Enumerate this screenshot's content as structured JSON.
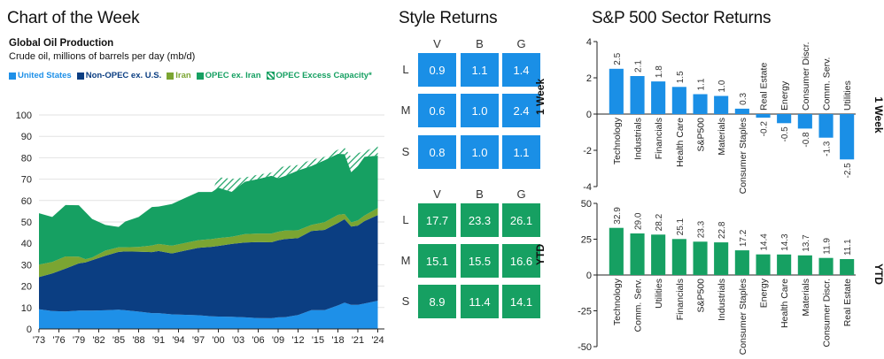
{
  "colors": {
    "us": "#1e90e8",
    "nonopec": "#0b3e82",
    "iran": "#7ba532",
    "opec": "#16a062",
    "excess_stroke": "#16a062",
    "style_1w": "#1a8fe6",
    "style_ytd": "#16a062",
    "sector_1w": "#1a8fe6",
    "sector_ytd": "#16a062"
  },
  "left": {
    "title": "Chart of the Week",
    "subtitle": "Global Oil Production",
    "unit_label": "Crude oil, millions of barrels per day (mb/d)",
    "legend": [
      {
        "label": "United States",
        "color": "#1e90e8",
        "hatched": false
      },
      {
        "label": "Non-OPEC ex. U.S.",
        "color": "#0b3e82",
        "hatched": false
      },
      {
        "label": "Iran",
        "color": "#7ba532",
        "hatched": false
      },
      {
        "label": "OPEC ex. Iran",
        "color": "#16a062",
        "hatched": false
      },
      {
        "label": "OPEC Excess Capacity*",
        "color": "#16a062",
        "hatched": true
      }
    ]
  },
  "style": {
    "title": "Style Returns",
    "col_labels": [
      "V",
      "B",
      "G"
    ],
    "row_labels": [
      "L",
      "M",
      "S"
    ],
    "week_label": "1 Week",
    "ytd_label": "YTD",
    "week_values": [
      [
        "0.9",
        "1.1",
        "1.4"
      ],
      [
        "0.6",
        "1.0",
        "2.4"
      ],
      [
        "0.8",
        "1.0",
        "1.1"
      ]
    ],
    "ytd_values": [
      [
        "17.7",
        "23.3",
        "26.1"
      ],
      [
        "15.1",
        "15.5",
        "16.6"
      ],
      [
        "8.9",
        "11.4",
        "14.1"
      ]
    ]
  },
  "sector": {
    "title": "S&P 500 Sector Returns",
    "week_side_label": "1 Week",
    "ytd_side_label": "YTD"
  },
  "chart_data": [
    {
      "type": "area",
      "title": "Global Oil Production",
      "ylabel": "Crude oil, millions of barrels per day (mb/d)",
      "ylim": [
        0,
        100
      ],
      "yticks": [
        "0",
        "10",
        "20",
        "30",
        "40",
        "50",
        "60",
        "70",
        "80",
        "90",
        "100"
      ],
      "xlim": [
        1973,
        2025
      ],
      "xticks": [
        "'73",
        "'76",
        "'79",
        "'82",
        "'85",
        "'88",
        "'91",
        "'94",
        "'97",
        "'00",
        "'03",
        "'06",
        "'09",
        "'12",
        "'15",
        "'18",
        "'21",
        "'24"
      ],
      "x": [
        1973,
        1975,
        1977,
        1979,
        1980,
        1981,
        1983,
        1985,
        1986,
        1988,
        1990,
        1991,
        1993,
        1995,
        1997,
        1999,
        2000,
        2002,
        2004,
        2006,
        2008,
        2009,
        2010,
        2012,
        2014,
        2016,
        2018,
        2019,
        2020,
        2021,
        2022,
        2024
      ],
      "series": [
        {
          "name": "United States",
          "values": [
            9.2,
            8.4,
            8.2,
            8.6,
            8.6,
            8.6,
            8.7,
            9.0,
            8.7,
            8.1,
            7.4,
            7.4,
            6.8,
            6.6,
            6.4,
            5.9,
            5.8,
            5.7,
            5.4,
            5.1,
            5.0,
            5.4,
            5.5,
            6.5,
            8.8,
            8.8,
            11.0,
            12.3,
            11.3,
            11.3,
            11.9,
            13.2
          ]
        },
        {
          "name": "Non-OPEC ex. U.S.",
          "values": [
            15.0,
            17.5,
            20.0,
            22.0,
            22.5,
            23.5,
            25.5,
            27.0,
            27.5,
            28.0,
            28.5,
            29.0,
            28.5,
            30.0,
            31.5,
            32.5,
            33.0,
            34.0,
            35.0,
            35.5,
            35.5,
            36.0,
            36.5,
            36.0,
            37.0,
            37.5,
            38.5,
            39.0,
            36.5,
            37.0,
            38.5,
            40.0
          ]
        },
        {
          "name": "Iran",
          "values": [
            5.9,
            5.4,
            5.7,
            3.2,
            1.5,
            1.3,
            2.4,
            2.2,
            2.0,
            2.2,
            3.1,
            3.3,
            3.6,
            3.6,
            3.6,
            3.6,
            3.7,
            3.4,
            3.9,
            4.0,
            4.1,
            4.0,
            4.0,
            3.6,
            2.8,
            3.6,
            3.8,
            2.4,
            2.0,
            2.4,
            2.6,
            3.3
          ]
        },
        {
          "name": "OPEC ex. Iran",
          "values": [
            24.0,
            21.0,
            24.0,
            24.0,
            22.0,
            18.0,
            12.0,
            9.5,
            12.0,
            14.0,
            18.0,
            17.5,
            19.5,
            21.0,
            22.5,
            22.0,
            23.5,
            21.0,
            24.5,
            25.5,
            27.0,
            25.0,
            25.5,
            28.0,
            27.5,
            29.0,
            28.5,
            28.0,
            23.5,
            25.5,
            27.5,
            24.5
          ]
        },
        {
          "name": "OPEC Excess Capacity*",
          "values": [
            0,
            0,
            0,
            0,
            0,
            0,
            0,
            0,
            0,
            0,
            0,
            0,
            0,
            0,
            0,
            0,
            5.0,
            6.0,
            2.0,
            2.0,
            1.5,
            5.0,
            4.5,
            2.5,
            3.0,
            1.5,
            2.0,
            3.0,
            7.0,
            6.0,
            2.5,
            4.5
          ]
        }
      ]
    },
    {
      "type": "bar",
      "title": "S&P 500 Sector Returns — 1 Week",
      "ylim": [
        -4,
        4
      ],
      "yticks": [
        "-4",
        "-2",
        "0",
        "2",
        "4"
      ],
      "categories": [
        "Technology",
        "Industrials",
        "Financials",
        "Health Care",
        "S&P500",
        "Materials",
        "Consumer Staples",
        "Real Estate",
        "Energy",
        "Consumer Discr.",
        "Comm. Serv.",
        "Utilities"
      ],
      "values": [
        2.5,
        2.1,
        1.8,
        1.5,
        1.1,
        1.0,
        0.3,
        -0.2,
        -0.5,
        -0.8,
        -1.3,
        -2.5
      ],
      "value_labels": [
        "2.5",
        "2.1",
        "1.8",
        "1.5",
        "1.1",
        "1.0",
        "0.3",
        "-0.2",
        "-0.5",
        "-0.8",
        "-1.3",
        "-2.5"
      ]
    },
    {
      "type": "bar",
      "title": "S&P 500 Sector Returns — YTD",
      "ylim": [
        -50,
        50
      ],
      "yticks": [
        "-50",
        "-25",
        "0",
        "25",
        "50"
      ],
      "categories": [
        "Technology",
        "Comm. Serv.",
        "Utilities",
        "Financials",
        "S&P500",
        "Industrials",
        "Consumer Staples",
        "Energy",
        "Health Care",
        "Materials",
        "Consumer Discr.",
        "Real Estate"
      ],
      "values": [
        32.9,
        29.0,
        28.2,
        25.1,
        23.3,
        22.8,
        17.2,
        14.4,
        14.3,
        13.7,
        11.9,
        11.1
      ],
      "value_labels": [
        "32.9",
        "29.0",
        "28.2",
        "25.1",
        "23.3",
        "22.8",
        "17.2",
        "14.4",
        "14.3",
        "13.7",
        "11.9",
        "11.1"
      ]
    }
  ]
}
